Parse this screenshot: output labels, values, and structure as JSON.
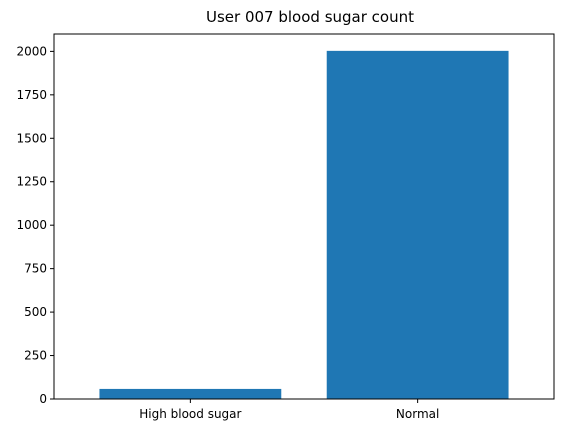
{
  "chart_data": {
    "type": "bar",
    "title": "User 007 blood sugar count",
    "categories": [
      "High blood sugar",
      "Normal"
    ],
    "values": [
      58,
      2003
    ],
    "xlabel": "",
    "ylabel": "",
    "ylim": [
      0,
      2100
    ],
    "yticks": [
      0,
      250,
      500,
      750,
      1000,
      1250,
      1500,
      1750,
      2000
    ],
    "ytick_labels": [
      "0",
      "250",
      "500",
      "750",
      "1000",
      "1250",
      "1500",
      "1750",
      "2000"
    ],
    "grid": false,
    "legend": "none",
    "bar_color": "#1f77b4"
  }
}
